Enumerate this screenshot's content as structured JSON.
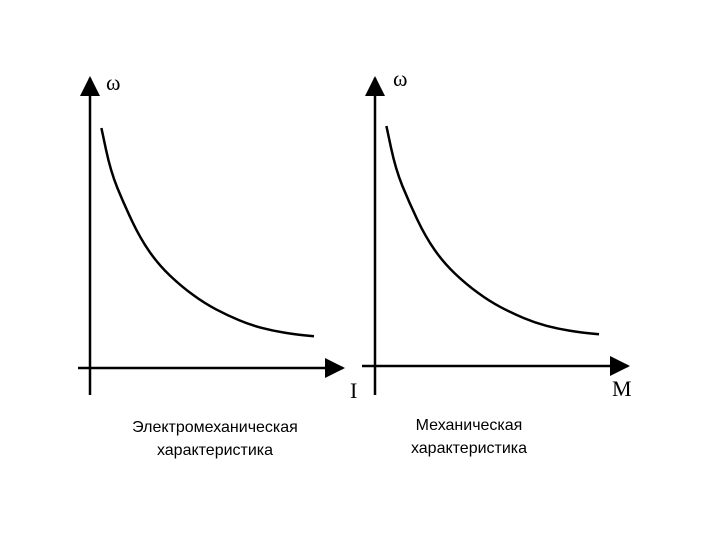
{
  "chart_data": [
    {
      "type": "line",
      "ylabel": "ω",
      "xlabel": "I",
      "caption": [
        "Электромеханическая",
        "характеристика"
      ],
      "series": [
        {
          "x": [
            0.5,
            0.9,
            1.5,
            2.2,
            3.0,
            4.0,
            5.0,
            6.0,
            7.0,
            8.0,
            9.0,
            9.8
          ],
          "y": [
            10.0,
            8.2,
            6.8,
            5.4,
            4.3,
            3.4,
            2.7,
            2.2,
            1.8,
            1.55,
            1.4,
            1.32
          ]
        }
      ],
      "xlim": [
        0,
        10.5
      ],
      "ylim": [
        0,
        11.5
      ]
    },
    {
      "type": "line",
      "ylabel": "ω",
      "xlabel": "M",
      "caption": [
        "Механическая",
        "характеристика"
      ],
      "series": [
        {
          "x": [
            0.5,
            0.9,
            1.5,
            2.2,
            3.0,
            4.0,
            5.0,
            6.0,
            7.0,
            8.0,
            9.0,
            9.8
          ],
          "y": [
            10.0,
            8.2,
            6.8,
            5.4,
            4.3,
            3.4,
            2.7,
            2.2,
            1.8,
            1.55,
            1.4,
            1.32
          ]
        }
      ],
      "xlim": [
        0,
        10.5
      ],
      "ylim": [
        0,
        11.5
      ]
    }
  ]
}
